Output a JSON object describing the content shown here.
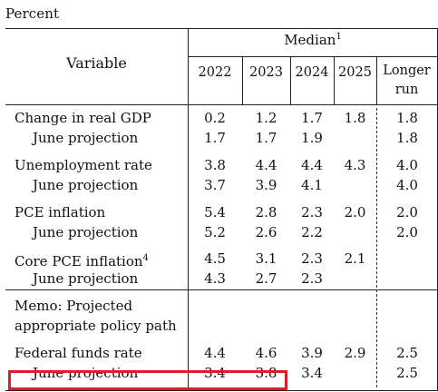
{
  "unit_label": "Percent",
  "header": {
    "variable": "Variable",
    "median": "Median",
    "median_footnote": "1",
    "columns": [
      "2022",
      "2023",
      "2024",
      "2025",
      "Longer run"
    ]
  },
  "rows": [
    {
      "label": "Change in real GDP",
      "values": [
        "0.2",
        "1.2",
        "1.7",
        "1.8",
        "1.8"
      ],
      "footnote": ""
    },
    {
      "label": "June projection",
      "values": [
        "1.7",
        "1.7",
        "1.9",
        "",
        "1.8"
      ],
      "footnote": ""
    },
    {
      "label": "Unemployment rate",
      "values": [
        "3.8",
        "4.4",
        "4.4",
        "4.3",
        "4.0"
      ],
      "footnote": ""
    },
    {
      "label": "June projection",
      "values": [
        "3.7",
        "3.9",
        "4.1",
        "",
        "4.0"
      ],
      "footnote": ""
    },
    {
      "label": "PCE inflation",
      "values": [
        "5.4",
        "2.8",
        "2.3",
        "2.0",
        "2.0"
      ],
      "footnote": ""
    },
    {
      "label": "June projection",
      "values": [
        "5.2",
        "2.6",
        "2.2",
        "",
        "2.0"
      ],
      "footnote": ""
    },
    {
      "label": "Core PCE inflation",
      "values": [
        "4.5",
        "3.1",
        "2.3",
        "2.1",
        ""
      ],
      "footnote": "4"
    },
    {
      "label": "June projection",
      "values": [
        "4.3",
        "2.7",
        "2.3",
        "",
        ""
      ],
      "footnote": ""
    }
  ],
  "memo": {
    "line1": "Memo: Projected",
    "line2": "appropriate policy path"
  },
  "policy_rows": [
    {
      "label": "Federal funds rate",
      "values": [
        "4.4",
        "4.6",
        "3.9",
        "2.9",
        "2.5"
      ]
    },
    {
      "label": "June projection",
      "values": [
        "3.4",
        "3.8",
        "3.4",
        "",
        "2.5"
      ]
    }
  ],
  "highlight_color": "#d81f2a"
}
